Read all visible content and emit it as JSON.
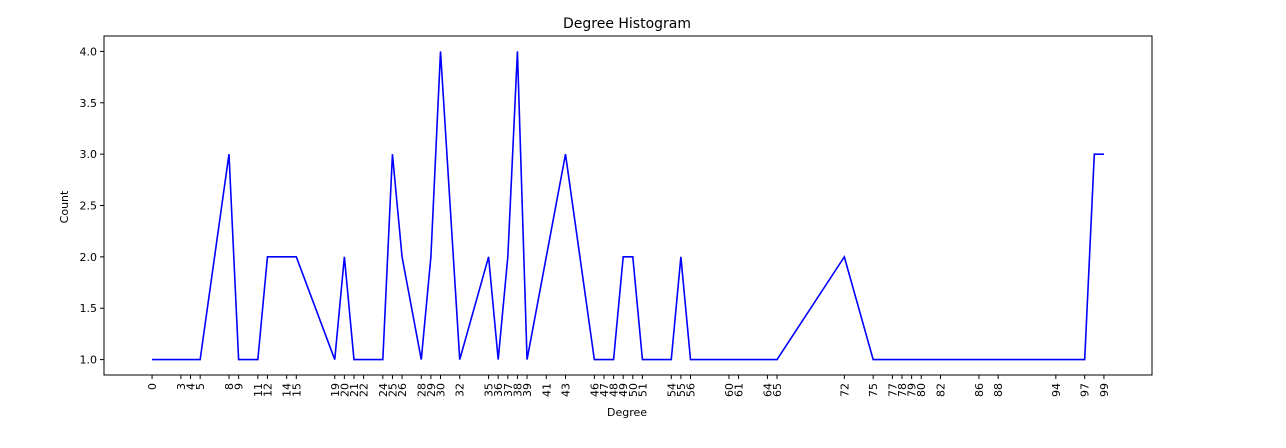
{
  "chart_data": {
    "type": "line",
    "title": "Degree Histogram",
    "xlabel": "Degree",
    "ylabel": "Count",
    "xlim": [
      -5.0,
      104.0
    ],
    "ylim": [
      0.85,
      4.15
    ],
    "yticks": [
      "1.0",
      "1.5",
      "2.0",
      "2.5",
      "3.0",
      "3.5",
      "4.0"
    ],
    "xticks": [
      0,
      3,
      4,
      5,
      8,
      9,
      11,
      12,
      14,
      15,
      19,
      20,
      21,
      22,
      24,
      25,
      26,
      28,
      29,
      30,
      32,
      35,
      36,
      37,
      38,
      39,
      41,
      43,
      46,
      47,
      48,
      49,
      50,
      51,
      54,
      55,
      56,
      60,
      61,
      64,
      65,
      72,
      75,
      77,
      78,
      79,
      80,
      82,
      86,
      88,
      94,
      97,
      99
    ],
    "line_color": "#0000ff",
    "grid": false,
    "series": [
      {
        "x": [
          99,
          98,
          97,
          75,
          72,
          65,
          56,
          55,
          54,
          51,
          50,
          49,
          48,
          47,
          46,
          43,
          39,
          38,
          37,
          36,
          35,
          32,
          30,
          29,
          28,
          26,
          25,
          24,
          22,
          21,
          20,
          19,
          15,
          14,
          12,
          11,
          9,
          8,
          5,
          4,
          3,
          0
        ],
        "y": [
          3,
          3,
          1,
          1,
          2,
          1,
          1,
          2,
          1,
          1,
          2,
          2,
          1,
          1,
          1,
          3,
          1,
          4,
          2,
          1,
          2,
          1,
          4,
          2,
          1,
          2,
          3,
          1,
          1,
          1,
          2,
          1,
          2,
          2,
          2,
          1,
          1,
          3,
          1,
          1,
          1,
          1
        ]
      }
    ]
  }
}
